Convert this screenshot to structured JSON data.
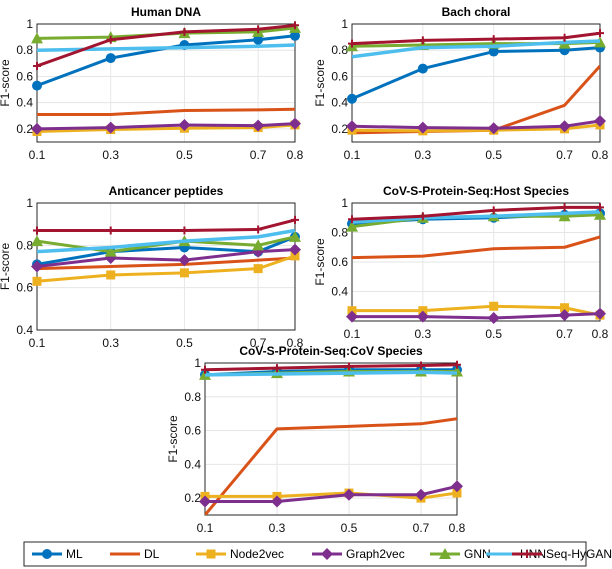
{
  "series_styles": [
    {
      "name": "ML",
      "color": "#0072BD",
      "marker": "circle"
    },
    {
      "name": "DL",
      "color": "#D95319",
      "marker": "none"
    },
    {
      "name": "Node2vec",
      "color": "#EDB120",
      "marker": "square"
    },
    {
      "name": "Graph2vec",
      "color": "#7E2F8E",
      "marker": "diamond"
    },
    {
      "name": "GNN",
      "color": "#77AC30",
      "marker": "triangle"
    },
    {
      "name": "HNN",
      "color": "#4DBEEE",
      "marker": "none"
    },
    {
      "name": "Seq-HyGAN",
      "color": "#A2142F",
      "marker": "plus"
    }
  ],
  "chart_data": [
    {
      "type": "line",
      "title": "Human DNA",
      "xlabel": "",
      "ylabel": "F1-score",
      "x": [
        0.1,
        0.3,
        0.5,
        0.7,
        0.8
      ],
      "xticks": [
        "0.1",
        "0.3",
        "0.5",
        "0.7",
        "0.8"
      ],
      "ylim": [
        0.1,
        1.0
      ],
      "yticks": [
        "0.2",
        "0.4",
        "0.6",
        "0.8",
        "1"
      ],
      "ytick_values": [
        0.2,
        0.4,
        0.6,
        0.8,
        1.0
      ],
      "series": [
        {
          "name": "ML",
          "values": [
            0.53,
            0.74,
            0.84,
            0.88,
            0.91
          ]
        },
        {
          "name": "DL",
          "values": [
            0.31,
            0.31,
            0.34,
            0.345,
            0.35
          ]
        },
        {
          "name": "Node2vec",
          "values": [
            0.18,
            0.195,
            0.205,
            0.21,
            0.23
          ]
        },
        {
          "name": "Graph2vec",
          "values": [
            0.2,
            0.21,
            0.23,
            0.225,
            0.24
          ]
        },
        {
          "name": "GNN",
          "values": [
            0.89,
            0.9,
            0.93,
            0.94,
            0.97
          ]
        },
        {
          "name": "HNN",
          "values": [
            0.8,
            0.81,
            0.82,
            0.83,
            0.84
          ]
        },
        {
          "name": "Seq-HyGAN",
          "values": [
            0.68,
            0.88,
            0.94,
            0.96,
            0.99
          ]
        }
      ]
    },
    {
      "type": "line",
      "title": "Bach choral",
      "xlabel": "",
      "ylabel": "F1-score",
      "x": [
        0.1,
        0.3,
        0.5,
        0.7,
        0.8
      ],
      "xticks": [
        "0.1",
        "0.3",
        "0.5",
        "0.7",
        "0.8"
      ],
      "ylim": [
        0.1,
        1.0
      ],
      "yticks": [
        "0.2",
        "0.4",
        "0.6",
        "0.8",
        "1"
      ],
      "ytick_values": [
        0.2,
        0.4,
        0.6,
        0.8,
        1.0
      ],
      "series": [
        {
          "name": "ML",
          "values": [
            0.43,
            0.66,
            0.79,
            0.8,
            0.82
          ]
        },
        {
          "name": "DL",
          "values": [
            0.17,
            0.18,
            0.19,
            0.38,
            0.68
          ]
        },
        {
          "name": "Node2vec",
          "values": [
            0.19,
            0.185,
            0.19,
            0.2,
            0.23
          ]
        },
        {
          "name": "Graph2vec",
          "values": [
            0.22,
            0.21,
            0.205,
            0.22,
            0.26
          ]
        },
        {
          "name": "GNN",
          "values": [
            0.83,
            0.84,
            0.85,
            0.85,
            0.86
          ]
        },
        {
          "name": "HNN",
          "values": [
            0.75,
            0.82,
            0.83,
            0.86,
            0.87
          ]
        },
        {
          "name": "Seq-HyGAN",
          "values": [
            0.85,
            0.875,
            0.885,
            0.895,
            0.93
          ]
        }
      ]
    },
    {
      "type": "line",
      "title": "Anticancer peptides",
      "xlabel": "",
      "ylabel": "F1-score",
      "x": [
        0.1,
        0.3,
        0.5,
        0.7,
        0.8
      ],
      "xticks": [
        "0.1",
        "0.3",
        "0.5",
        "0.7",
        "0.8"
      ],
      "ylim": [
        0.4,
        1.0
      ],
      "yticks": [
        "0.4",
        "0.6",
        "0.8",
        "1"
      ],
      "ytick_values": [
        0.4,
        0.6,
        0.8,
        1.0
      ],
      "series": [
        {
          "name": "ML",
          "values": [
            0.71,
            0.77,
            0.79,
            0.77,
            0.84
          ]
        },
        {
          "name": "DL",
          "values": [
            0.69,
            0.7,
            0.71,
            0.73,
            0.74
          ]
        },
        {
          "name": "Node2vec",
          "values": [
            0.63,
            0.66,
            0.67,
            0.69,
            0.75
          ]
        },
        {
          "name": "Graph2vec",
          "values": [
            0.7,
            0.74,
            0.73,
            0.77,
            0.78
          ]
        },
        {
          "name": "GNN",
          "values": [
            0.82,
            0.77,
            0.82,
            0.8,
            0.84
          ]
        },
        {
          "name": "HNN",
          "values": [
            0.77,
            0.79,
            0.82,
            0.84,
            0.87
          ]
        },
        {
          "name": "Seq-HyGAN",
          "values": [
            0.87,
            0.87,
            0.87,
            0.875,
            0.92
          ]
        }
      ]
    },
    {
      "type": "line",
      "title": "CoV-S-Protein-Seq:Host Species",
      "xlabel": "",
      "ylabel": "F1-score",
      "x": [
        0.1,
        0.3,
        0.5,
        0.7,
        0.8
      ],
      "xticks": [
        "0.1",
        "0.3",
        "0.5",
        "0.7",
        "0.8"
      ],
      "ylim": [
        0.2,
        1.0
      ],
      "yticks": [
        "0.4",
        "0.6",
        "0.8",
        "1"
      ],
      "ytick_values": [
        0.4,
        0.6,
        0.8,
        1.0
      ],
      "series": [
        {
          "name": "ML",
          "values": [
            0.86,
            0.89,
            0.9,
            0.92,
            0.93
          ]
        },
        {
          "name": "DL",
          "values": [
            0.63,
            0.64,
            0.69,
            0.7,
            0.77
          ]
        },
        {
          "name": "Node2vec",
          "values": [
            0.27,
            0.27,
            0.3,
            0.29,
            0.24
          ]
        },
        {
          "name": "Graph2vec",
          "values": [
            0.23,
            0.23,
            0.22,
            0.24,
            0.25
          ]
        },
        {
          "name": "GNN",
          "values": [
            0.84,
            0.9,
            0.91,
            0.91,
            0.92
          ]
        },
        {
          "name": "HNN",
          "values": [
            0.87,
            0.9,
            0.91,
            0.93,
            0.94
          ]
        },
        {
          "name": "Seq-HyGAN",
          "values": [
            0.89,
            0.91,
            0.95,
            0.97,
            0.97
          ]
        }
      ]
    },
    {
      "type": "line",
      "title": "CoV-S-Protein-Seq:CoV Species",
      "xlabel": "",
      "ylabel": "F1-score",
      "x": [
        0.1,
        0.3,
        0.5,
        0.7,
        0.8
      ],
      "xticks": [
        "0.1",
        "0.3",
        "0.5",
        "0.7",
        "0.8"
      ],
      "ylim": [
        0.1,
        1.0
      ],
      "yticks": [
        "0.2",
        "0.4",
        "0.6",
        "0.8",
        "1"
      ],
      "ytick_values": [
        0.2,
        0.4,
        0.6,
        0.8,
        1.0
      ],
      "series": [
        {
          "name": "ML",
          "values": [
            0.93,
            0.95,
            0.96,
            0.96,
            0.96
          ]
        },
        {
          "name": "DL",
          "values": [
            0.1,
            0.61,
            0.625,
            0.64,
            0.67
          ]
        },
        {
          "name": "Node2vec",
          "values": [
            0.21,
            0.21,
            0.23,
            0.2,
            0.23
          ]
        },
        {
          "name": "Graph2vec",
          "values": [
            0.18,
            0.18,
            0.22,
            0.22,
            0.27
          ]
        },
        {
          "name": "GNN",
          "values": [
            0.93,
            0.94,
            0.95,
            0.95,
            0.95
          ]
        },
        {
          "name": "HNN",
          "values": [
            0.93,
            0.935,
            0.94,
            0.945,
            0.94
          ]
        },
        {
          "name": "Seq-HyGAN",
          "values": [
            0.96,
            0.97,
            0.98,
            0.985,
            0.99
          ]
        }
      ]
    }
  ]
}
